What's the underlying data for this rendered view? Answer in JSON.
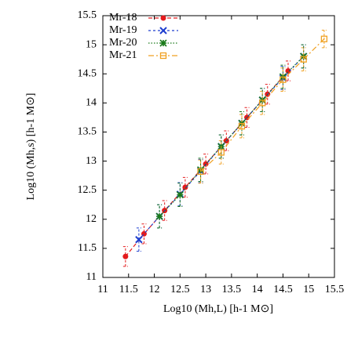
{
  "chart_data": {
    "type": "line",
    "xlabel": "Log10 (Mh,L) [h-1 M⊙]",
    "ylabel": "Log10 (Mh,s) [h-1 M⊙]",
    "xlim": [
      11,
      15.5
    ],
    "ylim": [
      11,
      15.5
    ],
    "xticks": [
      11,
      11.5,
      12,
      12.5,
      13,
      13.5,
      14,
      14.5,
      15,
      15.5
    ],
    "yticks": [
      11,
      11.5,
      12,
      12.5,
      13,
      13.5,
      14,
      14.5,
      15,
      15.5
    ],
    "legend": "top-left",
    "series": [
      {
        "name": "Mr-18",
        "color": "#e41a1c",
        "marker": "circle",
        "x": [
          11.44,
          11.8,
          12.2,
          12.6,
          13.0,
          13.4,
          13.8,
          14.2,
          14.6
        ],
        "values": [
          11.36,
          11.75,
          12.15,
          12.55,
          12.95,
          13.35,
          13.75,
          14.15,
          14.55
        ],
        "errors": [
          0.17,
          0.17,
          0.17,
          0.17,
          0.17,
          0.17,
          0.17,
          0.17,
          0.17
        ]
      },
      {
        "name": "Mr-19",
        "color": "#1f3fcf",
        "marker": "x",
        "x": [
          11.7,
          12.1,
          12.5,
          12.9,
          13.3,
          13.7,
          14.1,
          14.5,
          14.9
        ],
        "values": [
          11.65,
          12.05,
          12.43,
          12.83,
          13.25,
          13.65,
          14.05,
          14.43,
          14.8
        ],
        "errors": [
          0.2,
          0.2,
          0.2,
          0.2,
          0.2,
          0.2,
          0.2,
          0.2,
          0.2
        ]
      },
      {
        "name": "Mr-20",
        "color": "#1a7a1a",
        "marker": "star",
        "x": [
          12.1,
          12.5,
          12.9,
          13.3,
          13.7,
          14.1,
          14.5,
          14.9
        ],
        "values": [
          12.05,
          12.42,
          12.85,
          13.25,
          13.65,
          14.05,
          14.45,
          14.8
        ],
        "errors": [
          0.2,
          0.2,
          0.2,
          0.2,
          0.2,
          0.2,
          0.2,
          0.2
        ]
      },
      {
        "name": "Mr-21",
        "color": "#f0a020",
        "marker": "square",
        "x": [
          12.9,
          13.3,
          13.7,
          14.1,
          14.5,
          14.9,
          15.3
        ],
        "values": [
          12.82,
          13.15,
          13.6,
          14.0,
          14.4,
          14.75,
          15.1
        ],
        "errors": [
          0.2,
          0.2,
          0.2,
          0.2,
          0.2,
          0.2,
          0.15
        ]
      }
    ]
  }
}
